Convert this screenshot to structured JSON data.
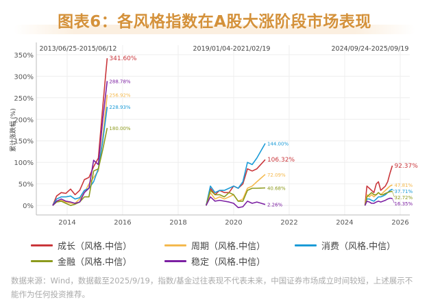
{
  "title": "图表6：各风格指数在A股大涨阶段市场表现",
  "footer": "数据来源：Wind，数据截至2025/9/19，指数/基金过往表现不代表未来，中国证券市场成立时间较短，上述展示不能作为任何投资推荐。",
  "chart_data": {
    "type": "line",
    "ylabel": "累计涨跌幅 (%)",
    "xlabel": "",
    "ylim": [
      -22,
      372
    ],
    "xlim": [
      "2012-12-01",
      "2026-04-01"
    ],
    "yticks": [
      "0%",
      "50%",
      "100%",
      "150%",
      "200%",
      "250%",
      "300%",
      "350%"
    ],
    "ytick_values": [
      0,
      50,
      100,
      150,
      200,
      250,
      300,
      350
    ],
    "xticks": [
      "2014",
      "2016",
      "2018",
      "2020",
      "2022",
      "2024",
      "2026"
    ],
    "grid": true,
    "legend_placement": "bottom",
    "segments": [
      {
        "label": "2013/06/25-2015/06/12",
        "dates": [
          "2013-06-25",
          "2013-08-15",
          "2013-10-15",
          "2013-12-15",
          "2014-02-15",
          "2014-04-15",
          "2014-06-15",
          "2014-08-15",
          "2014-10-15",
          "2014-12-15",
          "2015-02-15",
          "2015-04-15",
          "2015-06-12"
        ]
      },
      {
        "label": "2019/01/04-2021/02/19",
        "dates": [
          "2019-01-04",
          "2019-03-01",
          "2019-05-01",
          "2019-07-01",
          "2019-09-01",
          "2019-11-01",
          "2020-01-01",
          "2020-03-01",
          "2020-05-01",
          "2020-07-01",
          "2020-09-01",
          "2020-11-01",
          "2021-02-19"
        ]
      },
      {
        "label": "2024/09/24-2025/09/19",
        "dates": [
          "2024-09-24",
          "2024-10-20",
          "2024-11-20",
          "2024-12-20",
          "2025-01-20",
          "2025-02-20",
          "2025-03-20",
          "2025-04-20",
          "2025-05-20",
          "2025-06-20",
          "2025-07-20",
          "2025-08-20",
          "2025-09-19"
        ]
      }
    ],
    "series": [
      {
        "name": "成长（风格.中信）",
        "color": "#c9353a",
        "segments": [
          [
            0,
            22,
            30,
            28,
            38,
            25,
            35,
            60,
            65,
            90,
            110,
            230,
            341.6
          ],
          [
            0,
            40,
            25,
            35,
            30,
            30,
            45,
            40,
            50,
            85,
            80,
            85,
            106.32
          ],
          [
            0,
            45,
            40,
            35,
            30,
            50,
            55,
            35,
            40,
            45,
            55,
            75,
            92.37
          ]
        ],
        "end_labels": [
          "341.60%",
          "106.32%",
          "92.37%"
        ]
      },
      {
        "name": "周期（风格.中信）",
        "color": "#f4b94e",
        "segments": [
          [
            0,
            10,
            12,
            8,
            5,
            5,
            15,
            30,
            50,
            65,
            80,
            160,
            256.92
          ],
          [
            0,
            30,
            15,
            20,
            15,
            20,
            25,
            10,
            15,
            40,
            45,
            55,
            72.09
          ],
          [
            0,
            25,
            20,
            25,
            20,
            25,
            30,
            25,
            30,
            35,
            40,
            45,
            47.81
          ]
        ],
        "end_labels": [
          "256.92%",
          "72.09%",
          "47.81%"
        ]
      },
      {
        "name": "消费（风格.中信）",
        "color": "#1b9bd7",
        "segments": [
          [
            0,
            15,
            20,
            20,
            22,
            15,
            18,
            35,
            40,
            55,
            85,
            150,
            228.93
          ],
          [
            0,
            45,
            30,
            35,
            35,
            40,
            45,
            40,
            55,
            100,
            95,
            110,
            144.0
          ],
          [
            0,
            15,
            15,
            12,
            10,
            15,
            20,
            20,
            22,
            25,
            30,
            35,
            37.71
          ]
        ],
        "end_labels": [
          "228.93%",
          "144.00%",
          "37.71%"
        ]
      },
      {
        "name": "金融（风格.中信）",
        "color": "#8c9a1c",
        "segments": [
          [
            0,
            8,
            10,
            5,
            0,
            3,
            8,
            20,
            20,
            80,
            85,
            130,
            180.0
          ],
          [
            0,
            35,
            25,
            25,
            20,
            30,
            25,
            10,
            10,
            35,
            40,
            40,
            40.68
          ],
          [
            0,
            20,
            25,
            30,
            25,
            25,
            30,
            25,
            25,
            28,
            30,
            32,
            32.72
          ]
        ],
        "end_labels": [
          "180.00%",
          "40.68%",
          "32.72%"
        ]
      },
      {
        "name": "稳定（风格.中信）",
        "color": "#7b1fa2",
        "segments": [
          [
            0,
            10,
            15,
            10,
            8,
            5,
            8,
            30,
            40,
            105,
            95,
            200,
            288.78
          ],
          [
            0,
            20,
            10,
            12,
            10,
            8,
            5,
            -5,
            -3,
            10,
            5,
            8,
            2.26
          ],
          [
            0,
            10,
            8,
            5,
            5,
            8,
            10,
            8,
            10,
            12,
            15,
            17,
            16.35
          ]
        ],
        "end_labels": [
          "288.78%",
          "2.26%",
          "16.35%"
        ]
      }
    ]
  }
}
